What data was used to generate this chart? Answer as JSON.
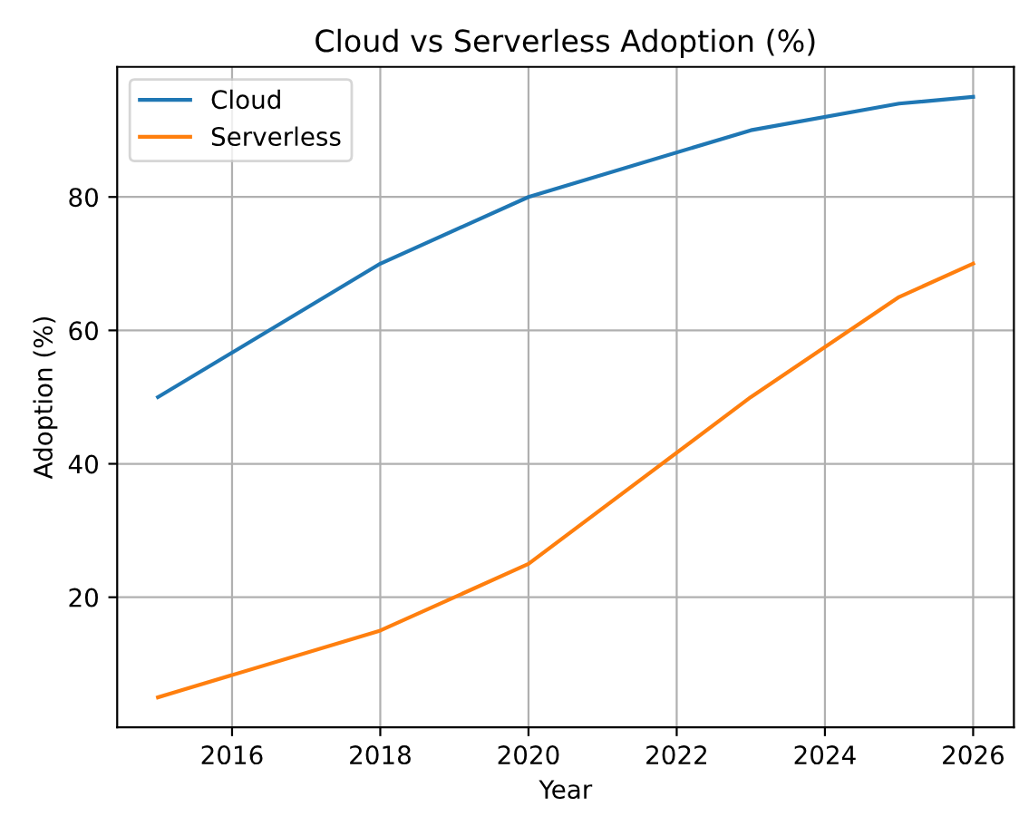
{
  "chart_data": {
    "type": "line",
    "title": "Cloud vs Serverless Adoption (%)",
    "xlabel": "Year",
    "ylabel": "Adoption (%)",
    "x": [
      2015,
      2018,
      2020,
      2023,
      2025,
      2026
    ],
    "series": [
      {
        "name": "Cloud",
        "color": "#1f77b4",
        "values": [
          50,
          70,
          80,
          90,
          94,
          95
        ]
      },
      {
        "name": "Serverless",
        "color": "#ff7f0e",
        "values": [
          5,
          15,
          25,
          50,
          65,
          70
        ]
      }
    ],
    "xlim": [
      2014.45,
      2026.55
    ],
    "ylim": [
      0.5,
      99.5
    ],
    "xticks": [
      2016,
      2018,
      2020,
      2022,
      2024,
      2026
    ],
    "yticks": [
      20,
      40,
      60,
      80
    ],
    "grid": true,
    "legend": "top left"
  }
}
